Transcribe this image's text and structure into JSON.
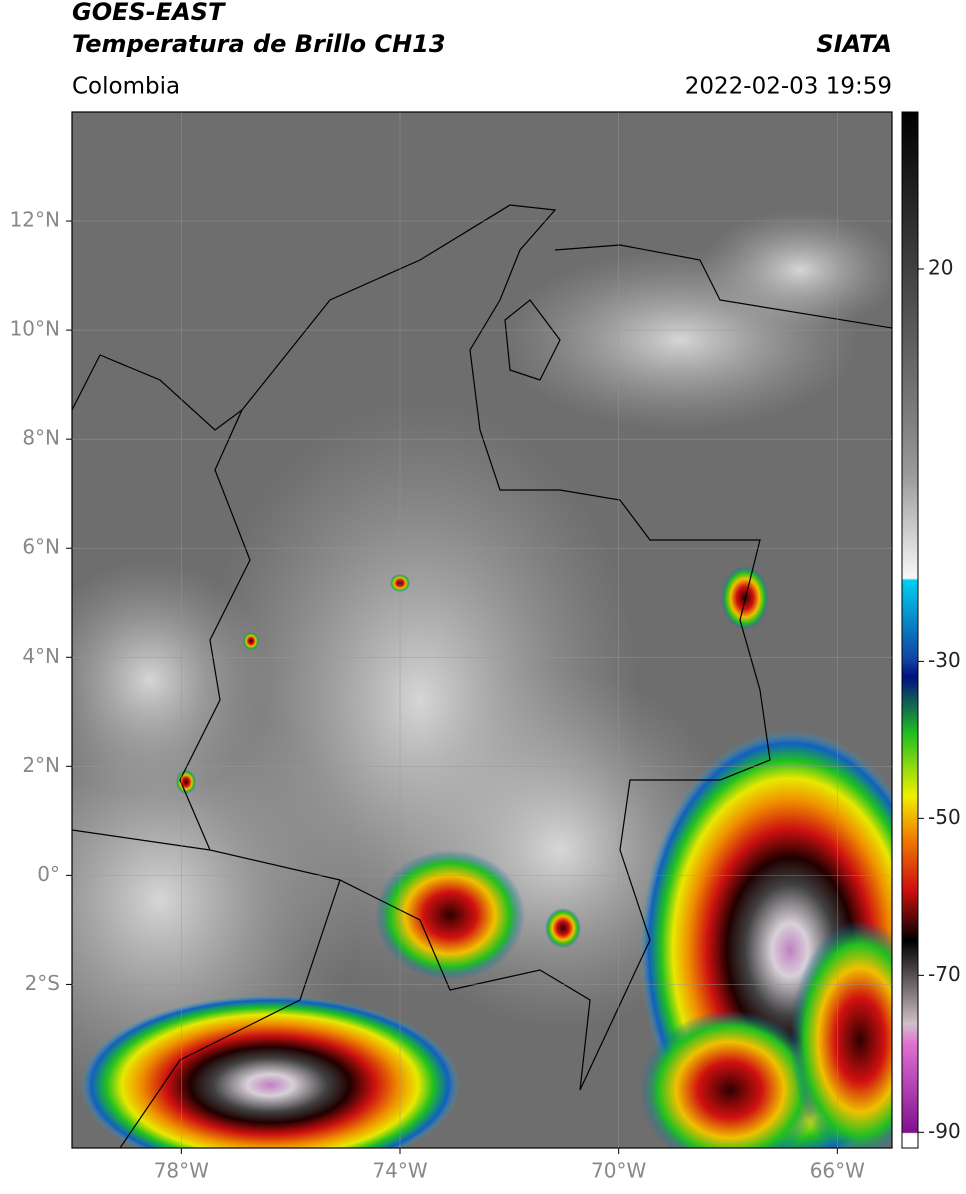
{
  "header": {
    "satellite": "GOES-EAST",
    "product": "Temperatura de Brillo CH13",
    "region": "Colombia",
    "source": "SIATA",
    "datetime": "2022-02-03 19:59"
  },
  "map": {
    "lonlim": [
      -80,
      -65
    ],
    "latlim": [
      -5,
      14
    ],
    "lon_ticks": [
      {
        "value": -78,
        "label": "78°W"
      },
      {
        "value": -74,
        "label": "74°W"
      },
      {
        "value": -70,
        "label": "70°W"
      },
      {
        "value": -66,
        "label": "66°W"
      }
    ],
    "lat_ticks": [
      {
        "value": 12,
        "label": "12°N"
      },
      {
        "value": 10,
        "label": "10°N"
      },
      {
        "value": 8,
        "label": "8°N"
      },
      {
        "value": 6,
        "label": "6°N"
      },
      {
        "value": 4,
        "label": "4°N"
      },
      {
        "value": 2,
        "label": "2°N"
      },
      {
        "value": 0,
        "label": "0°"
      },
      {
        "value": -2,
        "label": "2°S"
      }
    ]
  },
  "colorbar": {
    "lim": [
      -92,
      40
    ],
    "ticks": [
      20,
      -30,
      -50,
      -70,
      -90
    ]
  }
}
